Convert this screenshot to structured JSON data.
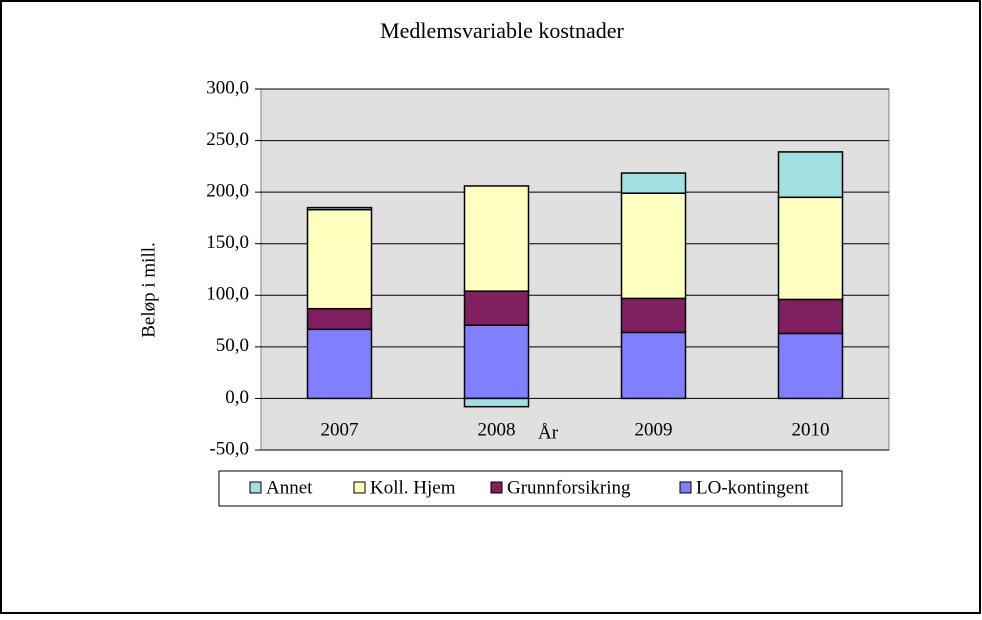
{
  "chart_data": {
    "type": "stacked_bar",
    "title": "Medlemsvariable kostnader",
    "x_label": "År",
    "y_label": "Beløp i mill.",
    "categories": [
      "2007",
      "2008",
      "2009",
      "2010"
    ],
    "series": [
      {
        "name": "Annet",
        "color": "#a0e0e0",
        "values": [
          2,
          -8,
          19.5,
          44
        ]
      },
      {
        "name": "Koll. Hjem",
        "color": "#ffffc0",
        "values": [
          96,
          102,
          102,
          99
        ]
      },
      {
        "name": "Grunnforsikring",
        "color": "#802060",
        "values": [
          20,
          33,
          33,
          33
        ]
      },
      {
        "name": "LO-kontingent",
        "color": "#8080ff",
        "values": [
          67,
          71,
          64,
          63
        ]
      }
    ],
    "ylim": [
      -50,
      300
    ],
    "yticks": [
      {
        "value": -50,
        "label": "-50,0"
      },
      {
        "value": 0,
        "label": "0,0"
      },
      {
        "value": 50,
        "label": "50,0"
      },
      {
        "value": 100,
        "label": "100,0"
      },
      {
        "value": 150,
        "label": "150,0"
      },
      {
        "value": 200,
        "label": "200,0"
      },
      {
        "value": 250,
        "label": "250,0"
      },
      {
        "value": 300,
        "label": "300,0"
      }
    ],
    "grid": true,
    "legend": "bottom"
  }
}
